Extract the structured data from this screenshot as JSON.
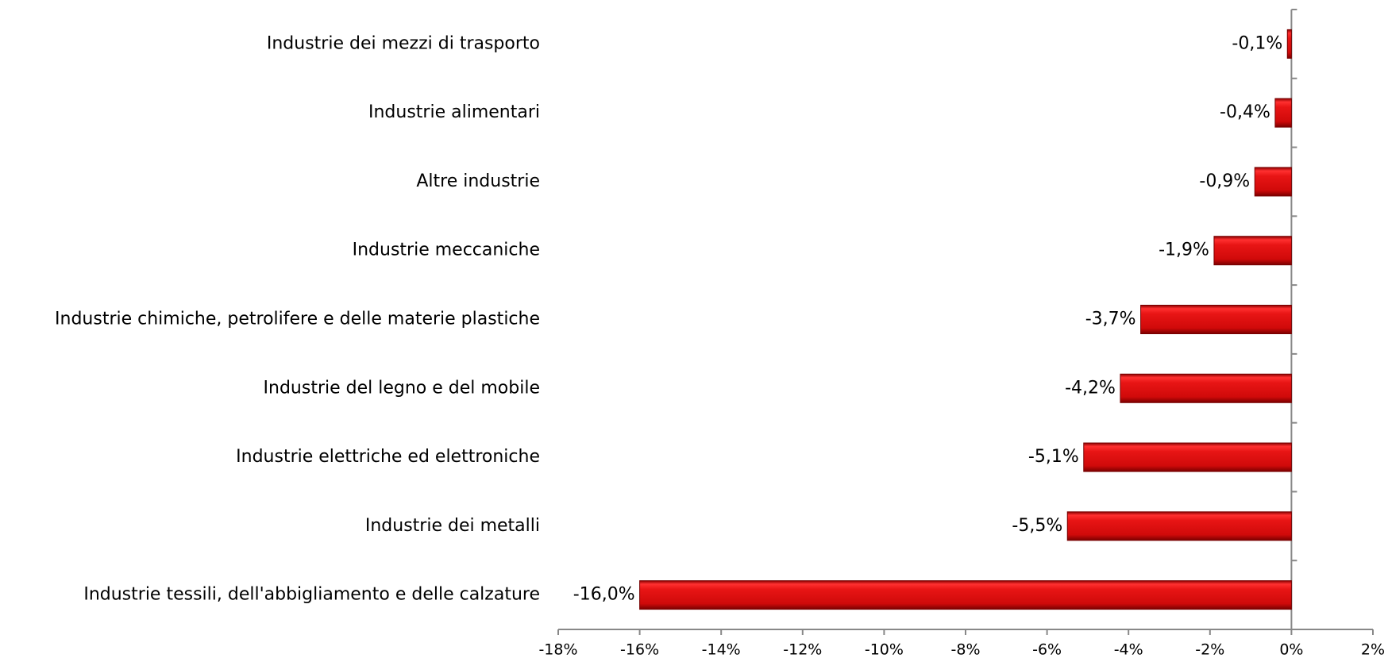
{
  "chart_data": {
    "type": "bar",
    "orientation": "horizontal",
    "categories": [
      "Industrie dei mezzi di trasporto",
      "Industrie alimentari",
      "Altre industrie",
      "Industrie meccaniche",
      "Industrie chimiche, petrolifere e delle materie plastiche",
      "Industrie del legno e del mobile",
      "Industrie elettriche ed elettroniche",
      "Industrie dei metalli",
      "Industrie tessili, dell'abbigliamento e delle calzature"
    ],
    "values": [
      -0.1,
      -0.4,
      -0.9,
      -1.9,
      -3.7,
      -4.2,
      -5.1,
      -5.5,
      -16.0
    ],
    "value_labels": [
      "-0,1%",
      "-0,4%",
      "-0,9%",
      "-1,9%",
      "-3,7%",
      "-4,2%",
      "-5,1%",
      "-5,5%",
      "-16,0%"
    ],
    "color": "#e01010",
    "xlim": [
      -18,
      2
    ],
    "xticks": [
      {
        "value": -18,
        "label": "-18%"
      },
      {
        "value": -16,
        "label": "-16%"
      },
      {
        "value": -14,
        "label": "-14%"
      },
      {
        "value": -12,
        "label": "-12%"
      },
      {
        "value": -10,
        "label": "-10%"
      },
      {
        "value": -8,
        "label": "-8%"
      },
      {
        "value": -6,
        "label": "-6%"
      },
      {
        "value": -4,
        "label": "-4%"
      },
      {
        "value": -2,
        "label": "-2%"
      },
      {
        "value": 0,
        "label": "0%"
      },
      {
        "value": 2,
        "label": "2%"
      }
    ],
    "grid": false
  }
}
